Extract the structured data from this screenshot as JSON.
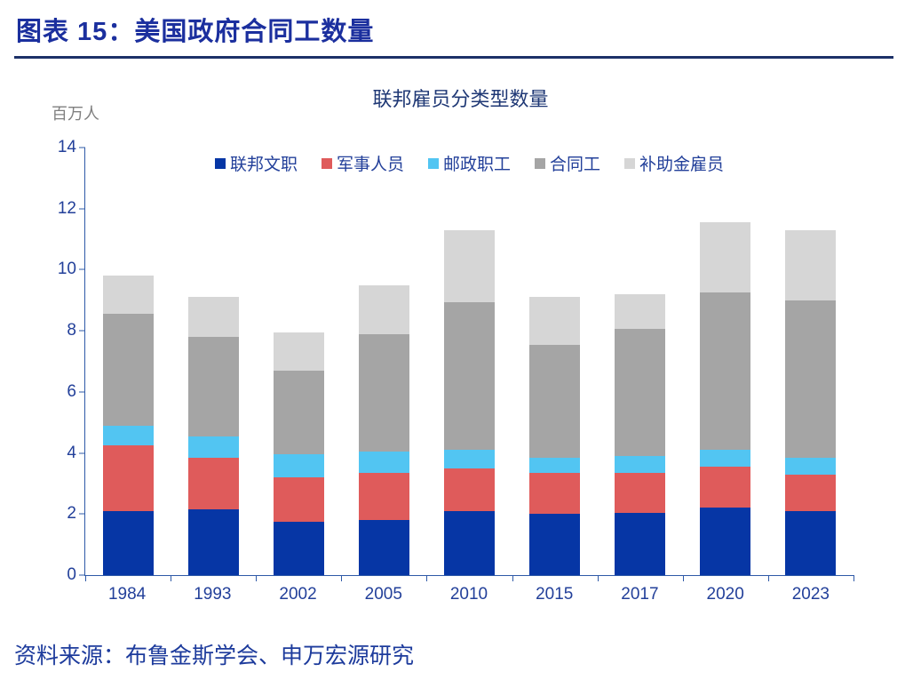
{
  "header": {
    "title": "图表 15：美国政府合同工数量"
  },
  "chart_data": {
    "type": "bar",
    "stacked": true,
    "title": "联邦雇员分类型数量",
    "unit_label": "百万人",
    "categories": [
      "1984",
      "1993",
      "2002",
      "2005",
      "2010",
      "2015",
      "2017",
      "2020",
      "2023"
    ],
    "series": [
      {
        "name": "联邦文职",
        "color": "#0636a5",
        "values": [
          2.1,
          2.15,
          1.75,
          1.8,
          2.1,
          2.0,
          2.05,
          2.2,
          2.1
        ]
      },
      {
        "name": "军事人员",
        "color": "#df5b5b",
        "values": [
          2.15,
          1.7,
          1.45,
          1.55,
          1.4,
          1.35,
          1.3,
          1.35,
          1.2
        ]
      },
      {
        "name": "邮政职工",
        "color": "#52c5f2",
        "values": [
          0.65,
          0.7,
          0.75,
          0.7,
          0.6,
          0.5,
          0.55,
          0.55,
          0.55
        ]
      },
      {
        "name": "合同工",
        "color": "#a5a5a5",
        "values": [
          3.65,
          3.25,
          2.75,
          3.85,
          4.85,
          3.7,
          4.15,
          5.15,
          5.15
        ]
      },
      {
        "name": "补助金雇员",
        "color": "#d6d6d6",
        "values": [
          1.25,
          1.3,
          1.25,
          1.6,
          2.35,
          1.55,
          1.15,
          2.3,
          2.3
        ]
      }
    ],
    "ylim": [
      0,
      14
    ],
    "yticks": [
      0,
      2,
      4,
      6,
      8,
      10,
      12,
      14
    ],
    "legend_position": "top",
    "grid": false
  },
  "footer": {
    "source": "资料来源：布鲁金斯学会、申万宏源研究"
  }
}
